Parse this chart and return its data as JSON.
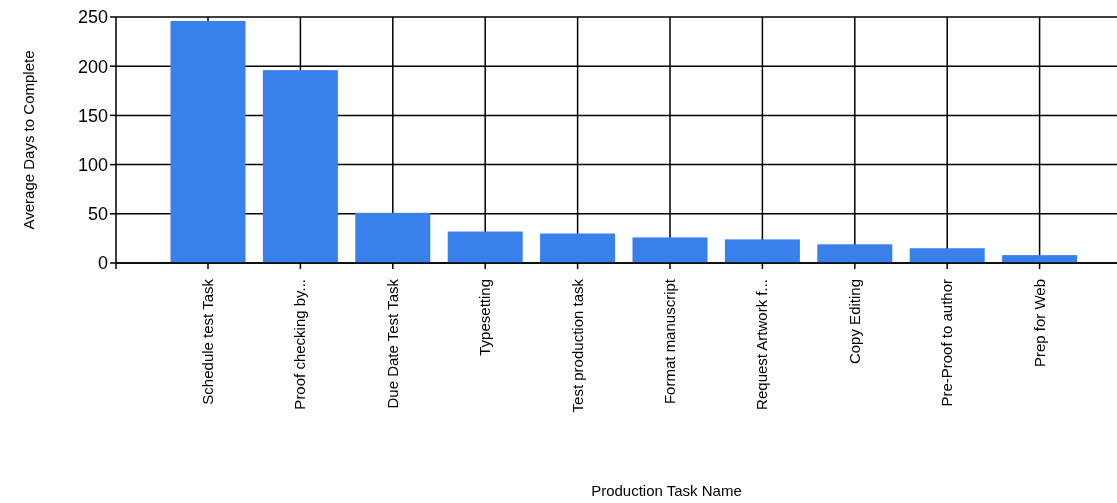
{
  "chart_data": {
    "type": "bar",
    "xlabel": "Production Task Name",
    "ylabel": "Average Days to Complete",
    "categories": [
      "Schedule test Task",
      "Proof checking by...",
      "Due Date Test Task",
      "Typesetting",
      "Test production task",
      "Format manuscript",
      "Request Artwork f...",
      "Copy Editing",
      "Pre-Proof to author",
      "Prep for Web"
    ],
    "values": [
      246,
      196,
      51,
      32,
      30,
      26,
      24,
      19,
      15,
      8
    ],
    "color": "#3a80ea",
    "ylim": [
      0,
      250
    ],
    "yticks": [
      0,
      50,
      100,
      150,
      200,
      250
    ],
    "grid": true
  }
}
